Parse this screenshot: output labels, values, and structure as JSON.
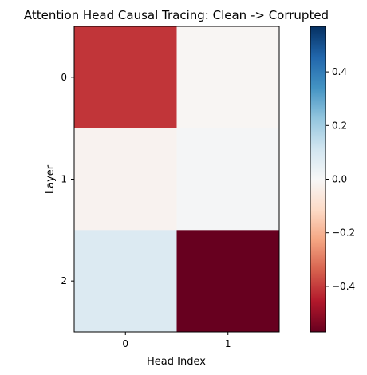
{
  "chart_data": {
    "type": "heatmap",
    "title": "Attention Head Causal Tracing: Clean -> Corrupted",
    "xlabel": "Head Index",
    "ylabel": "Layer",
    "x_categories": [
      "0",
      "1"
    ],
    "y_categories": [
      "0",
      "1",
      "2"
    ],
    "values": [
      [
        -0.41,
        -0.01
      ],
      [
        -0.02,
        0.01
      ],
      [
        0.08,
        -0.57
      ]
    ],
    "colormap": "RdBu",
    "colorbar": {
      "vmin": -0.57,
      "vmax": 0.57,
      "ticks": [
        -0.4,
        -0.2,
        0.0,
        0.2,
        0.4
      ],
      "tick_labels": [
        "−0.4",
        "−0.2",
        "0.0",
        "0.2",
        "0.4"
      ]
    },
    "grid": false
  }
}
